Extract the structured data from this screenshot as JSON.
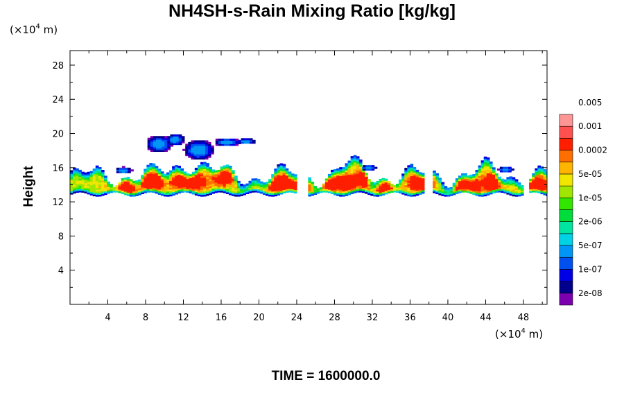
{
  "chart_data": {
    "type": "heatmap",
    "title": "NH4SH-s-Rain Mixing Ratio [kg/kg]",
    "ylabel": "Height",
    "xunit": "(×10",
    "xunit_exp": "4",
    "xunit_tail": " m)",
    "yunit": "(×10",
    "yunit_exp": "4",
    "yunit_tail": " m)",
    "xlim": [
      0,
      50.5
    ],
    "ylim": [
      0,
      29.7
    ],
    "x_ticks": [
      4,
      8,
      12,
      16,
      20,
      24,
      28,
      32,
      36,
      40,
      44,
      48
    ],
    "y_ticks": [
      4,
      8,
      12,
      16,
      20,
      24,
      28
    ],
    "grid": false,
    "colorbar": {
      "colors": [
        "#7b00b0",
        "#00008c",
        "#0000e6",
        "#0050f0",
        "#0096f5",
        "#00d2e6",
        "#00e6a0",
        "#00dc3c",
        "#32e600",
        "#a0e600",
        "#f0e600",
        "#ffb400",
        "#ff6e00",
        "#ff1e00",
        "#ff5050",
        "#ff9696"
      ],
      "labels": [
        "2e-08",
        "1e-07",
        "5e-07",
        "2e-06",
        "1e-05",
        "5e-05",
        "0.0002",
        "0.001",
        "0.005"
      ]
    },
    "time_text": "TIME = 1600000.0"
  }
}
